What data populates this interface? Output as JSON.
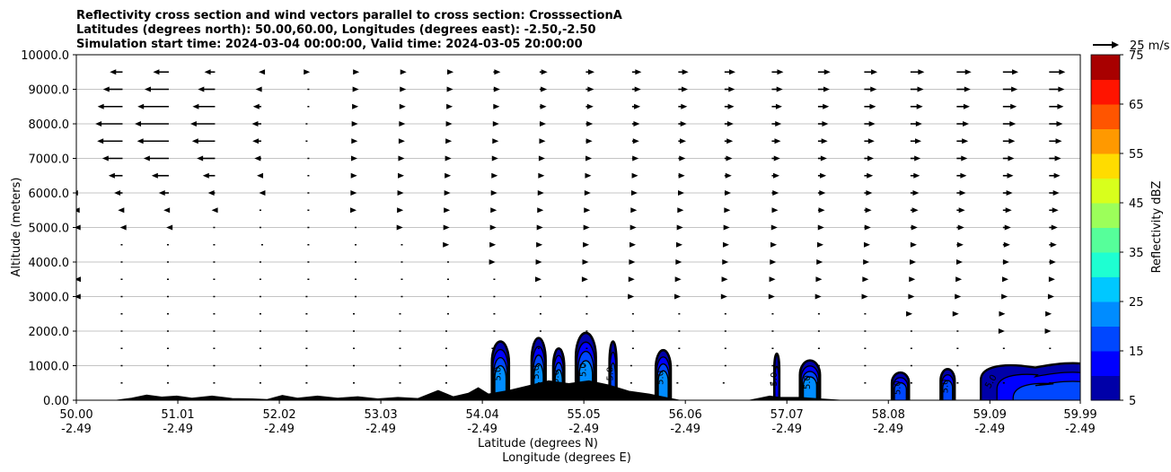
{
  "chart_data": {
    "type": "contour",
    "title_lines": [
      "Reflectivity cross section and wind vectors parallel to cross section: CrosssectionA",
      "Latitudes (degrees north): 50.00,60.00, Longitudes (degrees east): -2.50,-2.50",
      "Simulation start time: 2024-03-04 00:00:00, Valid time: 2024-03-05 20:00:00"
    ],
    "xlabel": "Latitude (degrees N)",
    "xlabel2": "Longitude (degrees E)",
    "ylabel": "Altitude (meters)",
    "xlim": [
      50.0,
      59.99
    ],
    "ylim": [
      0,
      10000
    ],
    "x_ticks": [
      {
        "lat": "50.00",
        "lon": "-2.49",
        "v": 50.0
      },
      {
        "lat": "51.01",
        "lon": "-2.49",
        "v": 51.01
      },
      {
        "lat": "52.02",
        "lon": "-2.49",
        "v": 52.02
      },
      {
        "lat": "53.03",
        "lon": "-2.49",
        "v": 53.03
      },
      {
        "lat": "54.04",
        "lon": "-2.49",
        "v": 54.04
      },
      {
        "lat": "55.05",
        "lon": "-2.49",
        "v": 55.05
      },
      {
        "lat": "56.06",
        "lon": "-2.49",
        "v": 56.06
      },
      {
        "lat": "57.07",
        "lon": "-2.49",
        "v": 57.07
      },
      {
        "lat": "58.08",
        "lon": "-2.49",
        "v": 58.08
      },
      {
        "lat": "59.09",
        "lon": "-2.49",
        "v": 59.09
      },
      {
        "lat": "59.99",
        "lon": "-2.49",
        "v": 59.99
      }
    ],
    "y_ticks": [
      {
        "label": "0.00",
        "v": 0
      },
      {
        "label": "1000.0",
        "v": 1000
      },
      {
        "label": "2000.0",
        "v": 2000
      },
      {
        "label": "3000.0",
        "v": 3000
      },
      {
        "label": "4000.0",
        "v": 4000
      },
      {
        "label": "5000.0",
        "v": 5000
      },
      {
        "label": "6000.0",
        "v": 6000
      },
      {
        "label": "7000.0",
        "v": 7000
      },
      {
        "label": "8000.0",
        "v": 8000
      },
      {
        "label": "9000.0",
        "v": 9000
      },
      {
        "label": "10000.0",
        "v": 10000
      }
    ],
    "grid": "horizontal",
    "colorbar": {
      "label": "Reflectivity dBZ",
      "levels": [
        5,
        10,
        15,
        20,
        25,
        30,
        35,
        40,
        45,
        50,
        55,
        60,
        65,
        70,
        75
      ],
      "tick_labels": [
        "5",
        "15",
        "25",
        "35",
        "45",
        "55",
        "65",
        "75"
      ],
      "colors": [
        "#0000a8",
        "#0000ff",
        "#0047ff",
        "#008cff",
        "#00c8ff",
        "#1effd2",
        "#56ff9a",
        "#9cff5a",
        "#d8ff1c",
        "#ffdc00",
        "#ff9900",
        "#ff5500",
        "#ff1400",
        "#a80000"
      ]
    },
    "vector_key": {
      "label": "25 m/s",
      "speed": 25
    },
    "contour_label": "5.0",
    "terrain": [
      [
        50.0,
        0
      ],
      [
        50.4,
        0
      ],
      [
        50.55,
        60
      ],
      [
        50.7,
        150
      ],
      [
        50.85,
        90
      ],
      [
        51.0,
        120
      ],
      [
        51.15,
        60
      ],
      [
        51.35,
        120
      ],
      [
        51.55,
        50
      ],
      [
        51.75,
        40
      ],
      [
        51.9,
        20
      ],
      [
        52.05,
        140
      ],
      [
        52.2,
        60
      ],
      [
        52.4,
        120
      ],
      [
        52.6,
        60
      ],
      [
        52.8,
        100
      ],
      [
        53.0,
        40
      ],
      [
        53.2,
        80
      ],
      [
        53.4,
        50
      ],
      [
        53.6,
        280
      ],
      [
        53.75,
        100
      ],
      [
        53.9,
        200
      ],
      [
        54.0,
        360
      ],
      [
        54.1,
        180
      ],
      [
        54.3,
        280
      ],
      [
        54.5,
        420
      ],
      [
        54.7,
        560
      ],
      [
        54.9,
        480
      ],
      [
        55.1,
        560
      ],
      [
        55.3,
        440
      ],
      [
        55.5,
        260
      ],
      [
        55.7,
        180
      ],
      [
        55.9,
        60
      ],
      [
        56.0,
        0
      ],
      [
        56.7,
        0
      ],
      [
        56.8,
        60
      ],
      [
        56.9,
        120
      ],
      [
        57.0,
        80
      ],
      [
        57.2,
        80
      ],
      [
        57.4,
        40
      ],
      [
        57.6,
        0
      ],
      [
        59.99,
        0
      ]
    ],
    "cells": [
      {
        "x": 54.22,
        "top": 1700,
        "w": 0.17,
        "max": 22
      },
      {
        "x": 54.6,
        "top": 1800,
        "w": 0.14,
        "max": 23
      },
      {
        "x": 54.8,
        "top": 1500,
        "w": 0.11,
        "max": 20
      },
      {
        "x": 55.07,
        "top": 1950,
        "w": 0.2,
        "max": 24
      },
      {
        "x": 55.34,
        "top": 1700,
        "w": 0.07,
        "max": 18
      },
      {
        "x": 55.84,
        "top": 1450,
        "w": 0.15,
        "max": 20
      },
      {
        "x": 56.97,
        "top": 1350,
        "w": 0.05,
        "max": 14
      },
      {
        "x": 57.3,
        "top": 1150,
        "w": 0.2,
        "max": 20
      },
      {
        "x": 58.2,
        "top": 800,
        "w": 0.17,
        "max": 19
      },
      {
        "x": 58.67,
        "top": 900,
        "w": 0.14,
        "max": 18
      }
    ],
    "right_layer": {
      "x_start": 59.0,
      "top": 1050,
      "max": 20
    },
    "wind": {
      "rows_m": [
        500,
        1000,
        1500,
        2000,
        2500,
        3000,
        3500,
        4000,
        4500,
        5000,
        5500,
        6000,
        6500,
        7000,
        7500,
        8000,
        8500,
        9000,
        9500
      ],
      "cols_lat": [
        50.0,
        50.46,
        50.92,
        51.38,
        51.84,
        52.3,
        52.77,
        53.23,
        53.69,
        54.15,
        54.61,
        55.07,
        55.53,
        55.99,
        56.45,
        56.92,
        57.38,
        57.84,
        58.3,
        58.76,
        59.22,
        59.68
      ]
    }
  }
}
